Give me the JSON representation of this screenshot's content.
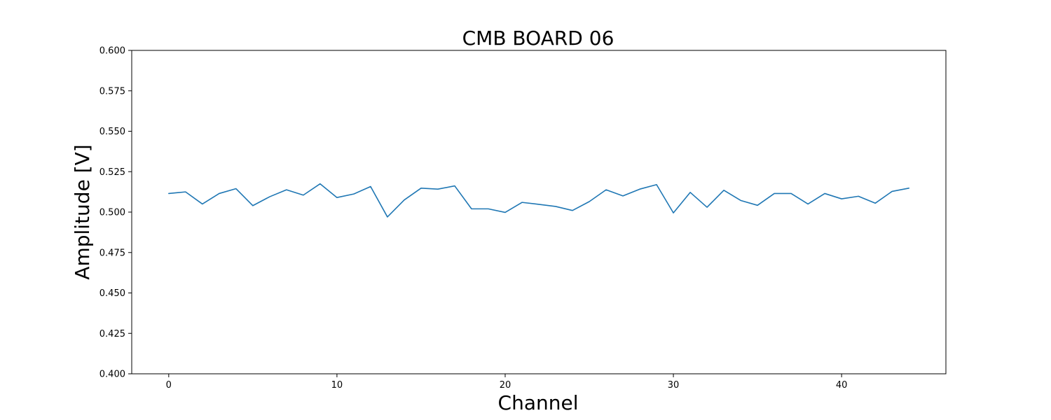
{
  "chart_data": {
    "type": "line",
    "title": "CMB BOARD 06",
    "xlabel": "Channel",
    "ylabel": "Amplitude [V]",
    "xlim": [
      -2.2,
      46.2
    ],
    "ylim": [
      0.4,
      0.6
    ],
    "x_ticks": [
      0,
      10,
      20,
      30,
      40
    ],
    "y_ticks": [
      0.4,
      0.425,
      0.45,
      0.475,
      0.5,
      0.525,
      0.55,
      0.575,
      0.6
    ],
    "grid": false,
    "legend": "none",
    "series": [
      {
        "color": "#1f77b4",
        "x": [
          0,
          1,
          2,
          3,
          4,
          5,
          6,
          7,
          8,
          9,
          10,
          11,
          12,
          13,
          14,
          15,
          16,
          17,
          18,
          19,
          20,
          21,
          22,
          23,
          24,
          25,
          26,
          27,
          28,
          29,
          30,
          31,
          32,
          33,
          34,
          35,
          36,
          37,
          38,
          39,
          40,
          41,
          42,
          43,
          44
        ],
        "y": [
          0.5115,
          0.5125,
          0.505,
          0.5115,
          0.5145,
          0.504,
          0.5095,
          0.5138,
          0.5105,
          0.5175,
          0.509,
          0.5112,
          0.5158,
          0.497,
          0.5075,
          0.5148,
          0.5142,
          0.5162,
          0.502,
          0.502,
          0.4998,
          0.506,
          0.5048,
          0.5035,
          0.501,
          0.5065,
          0.5138,
          0.51,
          0.5142,
          0.517,
          0.4995,
          0.5122,
          0.503,
          0.5135,
          0.5072,
          0.5042,
          0.5115,
          0.5115,
          0.505,
          0.5115,
          0.5082,
          0.5098,
          0.5055,
          0.5128,
          0.5148
        ]
      }
    ]
  }
}
